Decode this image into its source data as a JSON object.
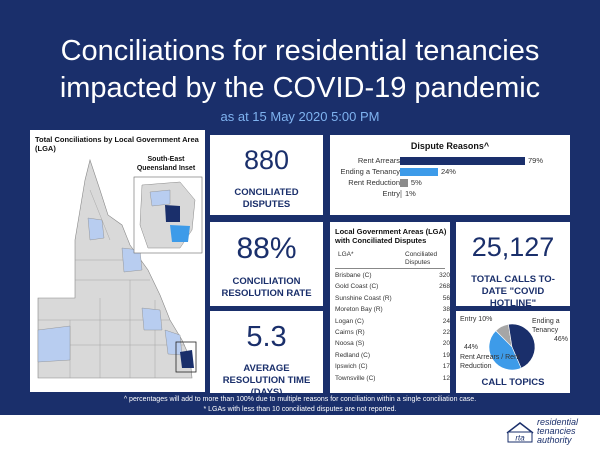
{
  "header": {
    "title_line1": "Conciliations for residential tenancies",
    "title_line2": "impacted by the COVID-19 pandemic",
    "as_at": "as at 15 May 2020 5:00 PM"
  },
  "map": {
    "title": "Total Conciliations by Local Government Area (LGA)",
    "inset_label": "South-East Queensland Inset"
  },
  "kpis": {
    "conciliated": {
      "value": "880",
      "label": "CONCILIATED DISPUTES"
    },
    "resolution_rate": {
      "value": "88%",
      "label": "CONCILIATION RESOLUTION RATE"
    },
    "avg_time": {
      "value": "5.3",
      "label": "AVERAGE RESOLUTION TIME (DAYS)"
    },
    "calls": {
      "value": "25,127",
      "label": "TOTAL CALLS TO-DATE \"COVID HOTLINE\""
    }
  },
  "dispute_reasons": {
    "title": "Dispute Reasons^",
    "items": [
      {
        "label": "Rent Arrears",
        "value": 79,
        "pct": "79%",
        "color": "#1a2f6b"
      },
      {
        "label": "Ending a Tenancy",
        "value": 24,
        "pct": "24%",
        "color": "#3d9be9"
      },
      {
        "label": "Rent Reduction",
        "value": 5,
        "pct": "5%",
        "color": "#8c8c8c"
      },
      {
        "label": "Entry",
        "value": 1,
        "pct": "1%",
        "color": "#c8c8c8"
      }
    ]
  },
  "lga_table": {
    "title": "Local Government Areas (LGA) with Conciliated Disputes",
    "col_lga": "LGA*",
    "col_count": "Conciliated Disputes",
    "rows": [
      {
        "lga": "Brisbane (C)",
        "count": "320"
      },
      {
        "lga": "Gold Coast (C)",
        "count": "268"
      },
      {
        "lga": "Sunshine Coast (R)",
        "count": "56"
      },
      {
        "lga": "Moreton Bay (R)",
        "count": "38"
      },
      {
        "lga": "Logan (C)",
        "count": "24"
      },
      {
        "lga": "Cairns (R)",
        "count": "22"
      },
      {
        "lga": "Noosa (S)",
        "count": "20"
      },
      {
        "lga": "Redland (C)",
        "count": "19"
      },
      {
        "lga": "Ipswich (C)",
        "count": "17"
      },
      {
        "lga": "Townsville (C)",
        "count": "12"
      }
    ]
  },
  "call_topics": {
    "title": "CALL TOPICS",
    "slices": [
      {
        "label": "Ending a Tenancy",
        "pct": "46%",
        "value": 46,
        "color": "#1a2f6b"
      },
      {
        "label": "Rent Arrears / Rent Reduction",
        "pct": "44%",
        "value": 44,
        "color": "#3d9be9"
      },
      {
        "label": "Entry",
        "pct": "10%",
        "value": 10,
        "color": "#a6a6a6"
      }
    ],
    "label_entry": "Entry",
    "label_entry_pct": "10%",
    "label_ending": "Ending a Tenancy",
    "label_ending_pct": "46%",
    "label_arrears_pct": "44%",
    "label_arrears": "Rent Arrears / Rent Reduction"
  },
  "footnotes": {
    "note1": "^ percentages will add to more than 100% due to multiple reasons for conciliation within a single conciliation case.",
    "note2": "* LGAs with less than 10 conciliated disputes are not reported."
  },
  "logo": {
    "mark": "rta",
    "line1": "residential",
    "line2": "tenancies",
    "line3": "authority"
  }
}
